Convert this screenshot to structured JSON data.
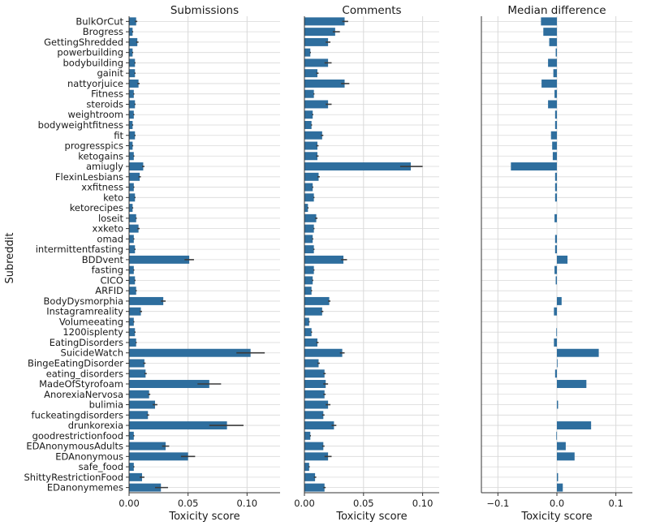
{
  "chart_data": {
    "type": "bar",
    "orientation": "horizontal",
    "ylabel": "Subreddit",
    "categories": [
      "BulkOrCut",
      "Brogress",
      "GettingShredded",
      "powerbuilding",
      "bodybuilding",
      "gainit",
      "nattyorjuice",
      "Fitness",
      "steroids",
      "weightroom",
      "bodyweightfitness",
      "fit",
      "progresspics",
      "ketogains",
      "amiugly",
      "FlexinLesbians",
      "xxfitness",
      "keto",
      "ketorecipes",
      "loseit",
      "xxketo",
      "omad",
      "intermittentfasting",
      "BDDvent",
      "fasting",
      "CICO",
      "ARFID",
      "BodyDysmorphia",
      "Instagramreality",
      "Volumeeating",
      "1200isplenty",
      "EatingDisorders",
      "SuicideWatch",
      "BingeEatingDisorder",
      "eating_disorders",
      "MadeOfStyrofoam",
      "AnorexiaNervosa",
      "bulimia",
      "fuckeatingdisorders",
      "drunkorexia",
      "goodrestrictionfood",
      "EDAnonymousAdults",
      "EDAnonymous",
      "safe_food",
      "ShittyRestrictionFood",
      "EDanonymemes"
    ],
    "panels": [
      {
        "title": "Submissions",
        "xlabel": "Toxicity score",
        "xlim": [
          0,
          0.128
        ],
        "xticks": [
          0,
          0.05,
          0.1
        ],
        "xtick_labels": [
          "0.00",
          "0.05",
          "0.10"
        ],
        "values": [
          0.006,
          0.003,
          0.007,
          0.003,
          0.005,
          0.005,
          0.008,
          0.004,
          0.005,
          0.004,
          0.003,
          0.005,
          0.003,
          0.004,
          0.012,
          0.009,
          0.004,
          0.005,
          0.003,
          0.006,
          0.008,
          0.004,
          0.005,
          0.051,
          0.004,
          0.005,
          0.006,
          0.029,
          0.01,
          0.004,
          0.005,
          0.006,
          0.103,
          0.013,
          0.014,
          0.068,
          0.017,
          0.022,
          0.016,
          0.083,
          0.004,
          0.031,
          0.05,
          0.004,
          0.011,
          0.027
        ],
        "errors": [
          [
            0.005,
            0.007
          ],
          [
            0.0025,
            0.0035
          ],
          [
            0.006,
            0.008
          ],
          [
            0.0025,
            0.0035
          ],
          [
            0.0045,
            0.0055
          ],
          [
            0.0045,
            0.0055
          ],
          [
            0.007,
            0.009
          ],
          [
            0.0035,
            0.0045
          ],
          [
            0.0045,
            0.0055
          ],
          [
            0.0035,
            0.0045
          ],
          [
            0.0025,
            0.0035
          ],
          [
            0.0045,
            0.0055
          ],
          [
            0.0025,
            0.0035
          ],
          [
            0.0035,
            0.0045
          ],
          [
            0.011,
            0.013
          ],
          [
            0.008,
            0.01
          ],
          [
            0.0035,
            0.0045
          ],
          [
            0.0045,
            0.0055
          ],
          [
            0.0025,
            0.0035
          ],
          [
            0.0055,
            0.0065
          ],
          [
            0.007,
            0.009
          ],
          [
            0.0035,
            0.0045
          ],
          [
            0.0045,
            0.0055
          ],
          [
            0.047,
            0.055
          ],
          [
            0.0035,
            0.0045
          ],
          [
            0.0045,
            0.0055
          ],
          [
            0.0055,
            0.0065
          ],
          [
            0.027,
            0.031
          ],
          [
            0.009,
            0.011
          ],
          [
            0.0035,
            0.0045
          ],
          [
            0.0045,
            0.0055
          ],
          [
            0.0055,
            0.0065
          ],
          [
            0.091,
            0.115
          ],
          [
            0.012,
            0.014
          ],
          [
            0.013,
            0.015
          ],
          [
            0.058,
            0.078
          ],
          [
            0.016,
            0.018
          ],
          [
            0.02,
            0.024
          ],
          [
            0.015,
            0.017
          ],
          [
            0.068,
            0.097
          ],
          [
            0.0035,
            0.0045
          ],
          [
            0.028,
            0.034
          ],
          [
            0.044,
            0.056
          ],
          [
            0.0035,
            0.0045
          ],
          [
            0.009,
            0.013
          ],
          [
            0.022,
            0.033
          ]
        ]
      },
      {
        "title": "Comments",
        "xlabel": "Toxicity score",
        "xlim": [
          0,
          0.114
        ],
        "xticks": [
          0,
          0.05,
          0.1
        ],
        "xtick_labels": [
          "0.00",
          "0.05",
          "0.10"
        ],
        "values": [
          0.034,
          0.026,
          0.02,
          0.005,
          0.02,
          0.011,
          0.034,
          0.008,
          0.02,
          0.007,
          0.006,
          0.015,
          0.011,
          0.011,
          0.09,
          0.012,
          0.007,
          0.008,
          0.003,
          0.01,
          0.008,
          0.007,
          0.008,
          0.033,
          0.008,
          0.007,
          0.006,
          0.021,
          0.015,
          0.004,
          0.006,
          0.011,
          0.032,
          0.012,
          0.017,
          0.018,
          0.017,
          0.02,
          0.016,
          0.025,
          0.005,
          0.016,
          0.02,
          0.004,
          0.009,
          0.017
        ],
        "errors": [
          [
            0.032,
            0.037
          ],
          [
            0.024,
            0.03
          ],
          [
            0.018,
            0.022
          ],
          [
            0.0045,
            0.0055
          ],
          [
            0.017,
            0.023
          ],
          [
            0.01,
            0.012
          ],
          [
            0.031,
            0.038
          ],
          [
            0.0075,
            0.0085
          ],
          [
            0.018,
            0.023
          ],
          [
            0.0065,
            0.0075
          ],
          [
            0.0055,
            0.0065
          ],
          [
            0.014,
            0.016
          ],
          [
            0.01,
            0.012
          ],
          [
            0.01,
            0.012
          ],
          [
            0.081,
            0.1
          ],
          [
            0.011,
            0.013
          ],
          [
            0.0065,
            0.0075
          ],
          [
            0.0075,
            0.0085
          ],
          [
            0.0025,
            0.0035
          ],
          [
            0.009,
            0.011
          ],
          [
            0.0075,
            0.0085
          ],
          [
            0.0065,
            0.0075
          ],
          [
            0.0075,
            0.0085
          ],
          [
            0.031,
            0.036
          ],
          [
            0.0075,
            0.0085
          ],
          [
            0.0065,
            0.0075
          ],
          [
            0.0055,
            0.0065
          ],
          [
            0.02,
            0.022
          ],
          [
            0.014,
            0.016
          ],
          [
            0.0035,
            0.0045
          ],
          [
            0.0055,
            0.0065
          ],
          [
            0.01,
            0.012
          ],
          [
            0.03,
            0.034
          ],
          [
            0.011,
            0.013
          ],
          [
            0.016,
            0.018
          ],
          [
            0.016,
            0.02
          ],
          [
            0.016,
            0.018
          ],
          [
            0.018,
            0.022
          ],
          [
            0.015,
            0.017
          ],
          [
            0.023,
            0.027
          ],
          [
            0.0045,
            0.0055
          ],
          [
            0.015,
            0.017
          ],
          [
            0.017,
            0.023
          ],
          [
            0.0035,
            0.0045
          ],
          [
            0.008,
            0.01
          ],
          [
            0.016,
            0.018
          ]
        ]
      },
      {
        "title": "Median difference",
        "xlabel": "Toxicity score",
        "xlim": [
          -0.128,
          0.128
        ],
        "xticks": [
          -0.1,
          0,
          0.1
        ],
        "xtick_labels": [
          "−0.1",
          "0.0",
          "0.1"
        ],
        "values": [
          -0.027,
          -0.023,
          -0.013,
          -0.002,
          -0.015,
          -0.006,
          -0.026,
          -0.004,
          -0.015,
          -0.003,
          -0.003,
          -0.01,
          -0.008,
          -0.007,
          -0.078,
          -0.003,
          -0.003,
          -0.003,
          0.0,
          -0.004,
          0.0,
          -0.003,
          -0.003,
          0.018,
          -0.004,
          -0.002,
          0.0,
          0.008,
          -0.005,
          0.0,
          -0.001,
          -0.005,
          0.071,
          0.001,
          -0.003,
          0.05,
          0.0,
          0.002,
          0.0,
          0.058,
          -0.001,
          0.015,
          0.03,
          0.0,
          0.002,
          0.01
        ]
      }
    ],
    "colors": {
      "bar": "#2e6e9e",
      "error": "#3a3a3a",
      "grid": "#d9d9d9",
      "axis": "#333333",
      "text": "#1a1a1a"
    }
  }
}
